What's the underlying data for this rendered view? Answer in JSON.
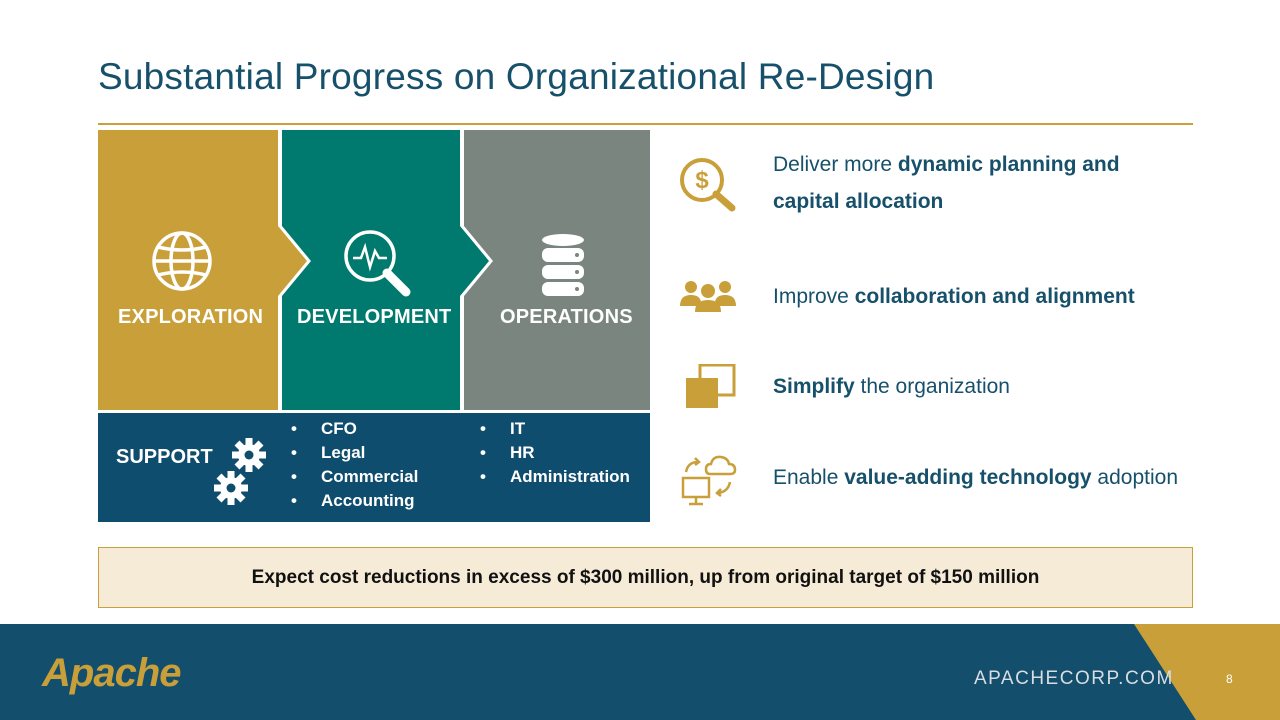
{
  "title": "Substantial Progress on Organizational Re-Design",
  "phases": {
    "exploration": "EXPLORATION",
    "development": "DEVELOPMENT",
    "operations": "OPERATIONS"
  },
  "support": {
    "label": "SUPPORT",
    "col1": [
      "CFO",
      "Legal",
      "Commercial",
      "Accounting"
    ],
    "col2": [
      "IT",
      "HR",
      "Administration"
    ]
  },
  "benefits": [
    {
      "pre": "Deliver more ",
      "bold": "dynamic planning and capital allocation",
      "post": "",
      "icon": "dollar-magnifier-icon"
    },
    {
      "pre": "Improve ",
      "bold": "collaboration and alignment",
      "post": "",
      "icon": "team-icon"
    },
    {
      "pre": "",
      "bold": "Simplify",
      "post": " the organization",
      "icon": "overlapping-squares-icon"
    },
    {
      "pre": "Enable ",
      "bold": "value-adding technology",
      "post": " adoption",
      "icon": "cloud-sync-computer-icon"
    }
  ],
  "callout": "Expect cost reductions in excess of $300 million, up from original target of $150 million",
  "footer": {
    "logo_text": "Apache",
    "website": "APACHECORP.COM",
    "page_number": "8"
  },
  "colors": {
    "gold": "#c9a03a",
    "teal": "#007a6e",
    "gray": "#7a857f",
    "navy": "#0e4d6e",
    "title": "#17506b"
  }
}
